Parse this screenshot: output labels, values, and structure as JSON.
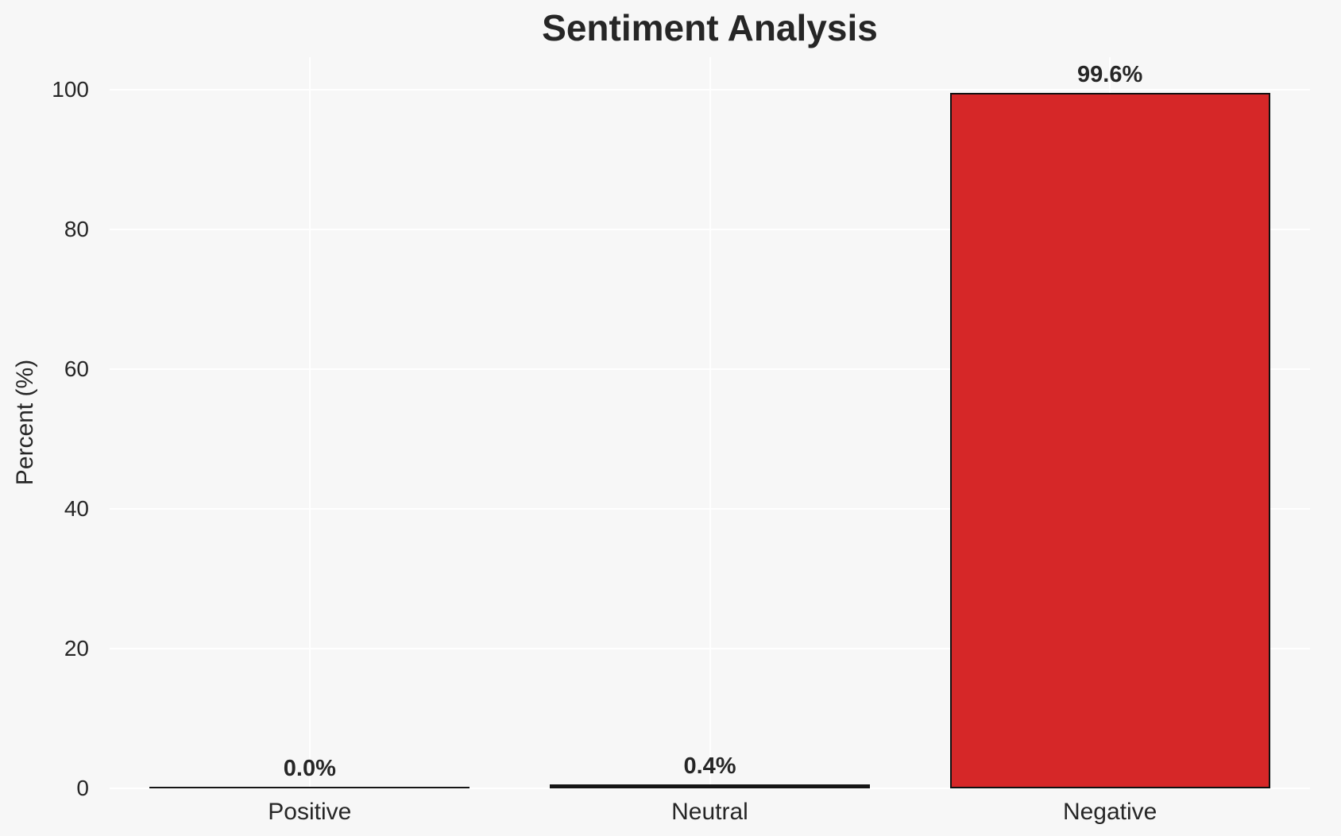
{
  "figure": {
    "background_color": "#f7f7f7",
    "gridline_color": "#ffffff",
    "text_color": "#262626"
  },
  "chart_data": {
    "type": "bar",
    "title": "Sentiment Analysis",
    "xlabel": "",
    "ylabel": "Percent (%)",
    "categories": [
      "Positive",
      "Neutral",
      "Negative"
    ],
    "values": [
      0.0,
      0.4,
      99.6
    ],
    "bar_value_labels": [
      "0.0%",
      "0.4%",
      "99.6%"
    ],
    "yticks": [
      0,
      20,
      40,
      60,
      80,
      100
    ],
    "ylim": [
      0,
      104.7
    ],
    "grid": true,
    "legend": false,
    "bar_fill_colors": [
      null,
      null,
      "#d62728"
    ],
    "bar_edge_color": "#111111",
    "bar_width_fraction": 0.8
  }
}
